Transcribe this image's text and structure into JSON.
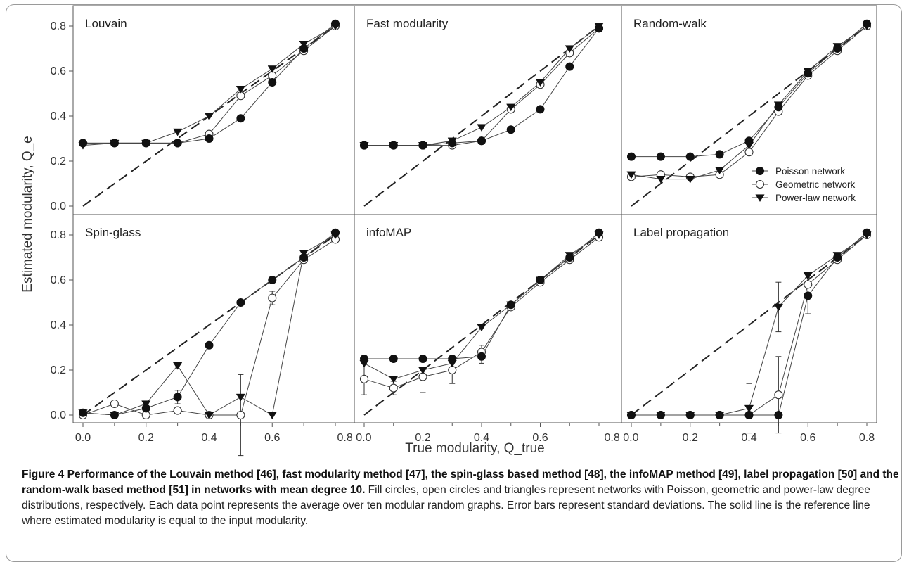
{
  "figure": {
    "xlabel": "True modularity, Q_true",
    "ylabel": "Estimated modularity, Q_e",
    "caption_bold": "Figure 4 Performance of the Louvain method [46], fast modularity method [47], the spin-glass based method [48], the infoMAP method [49], label propagation [50] and the random-walk based method [51] in networks with mean degree 10.",
    "caption_rest": " Fill circles, open circles and triangles represent networks with Poisson, geometric and power-law degree distributions, respectively. Each data point represents the average over ten modular random graphs. Error bars represent standard deviations. The solid line is the reference line where estimated modularity is equal to the input modularity.",
    "legend": [
      "Poisson network",
      "Geometric network",
      "Power-law network"
    ]
  },
  "chart_data": [
    {
      "type": "line",
      "title": "Louvain",
      "xlim": [
        0,
        0.8
      ],
      "ylim": [
        0,
        0.8
      ],
      "x": [
        0.0,
        0.1,
        0.2,
        0.3,
        0.4,
        0.5,
        0.6,
        0.7,
        0.8
      ],
      "reference_line": [
        [
          0,
          0
        ],
        [
          0.8,
          0.8
        ]
      ],
      "series": [
        {
          "name": "Poisson network",
          "values": [
            0.28,
            0.28,
            0.28,
            0.28,
            0.3,
            0.39,
            0.55,
            0.7,
            0.81
          ]
        },
        {
          "name": "Geometric network",
          "values": [
            0.28,
            0.28,
            0.28,
            0.28,
            0.32,
            0.49,
            0.58,
            0.69,
            0.8
          ]
        },
        {
          "name": "Power-law network",
          "values": [
            0.27,
            0.28,
            0.28,
            0.33,
            0.4,
            0.52,
            0.61,
            0.72,
            0.8
          ]
        }
      ]
    },
    {
      "type": "line",
      "title": "Fast modularity",
      "xlim": [
        0,
        0.8
      ],
      "ylim": [
        0,
        0.8
      ],
      "x": [
        0.0,
        0.1,
        0.2,
        0.3,
        0.4,
        0.5,
        0.6,
        0.7,
        0.8
      ],
      "reference_line": [
        [
          0,
          0
        ],
        [
          0.8,
          0.8
        ]
      ],
      "series": [
        {
          "name": "Poisson network",
          "values": [
            0.27,
            0.27,
            0.27,
            0.28,
            0.29,
            0.34,
            0.43,
            0.62,
            0.79
          ]
        },
        {
          "name": "Geometric network",
          "values": [
            0.27,
            0.27,
            0.27,
            0.27,
            0.29,
            0.43,
            0.54,
            0.68,
            0.79
          ]
        },
        {
          "name": "Power-law network",
          "values": [
            0.27,
            0.27,
            0.27,
            0.29,
            0.35,
            0.44,
            0.55,
            0.7,
            0.8
          ]
        }
      ]
    },
    {
      "type": "line",
      "title": "Random-walk",
      "xlim": [
        0,
        0.8
      ],
      "ylim": [
        0,
        0.8
      ],
      "x": [
        0.0,
        0.1,
        0.2,
        0.3,
        0.4,
        0.5,
        0.6,
        0.7,
        0.8
      ],
      "reference_line": [
        [
          0,
          0
        ],
        [
          0.8,
          0.8
        ]
      ],
      "legend_position": "center-right",
      "series": [
        {
          "name": "Poisson network",
          "values": [
            0.22,
            0.22,
            0.22,
            0.23,
            0.29,
            0.44,
            0.59,
            0.7,
            0.81
          ]
        },
        {
          "name": "Geometric network",
          "values": [
            0.13,
            0.14,
            0.13,
            0.14,
            0.24,
            0.42,
            0.58,
            0.69,
            0.8
          ]
        },
        {
          "name": "Power-law network",
          "values": [
            0.14,
            0.12,
            0.12,
            0.16,
            0.27,
            0.45,
            0.6,
            0.71,
            0.8
          ]
        }
      ]
    },
    {
      "type": "line",
      "title": "Spin-glass",
      "xlim": [
        0,
        0.8
      ],
      "ylim": [
        0,
        0.8
      ],
      "x": [
        0.0,
        0.1,
        0.2,
        0.3,
        0.4,
        0.5,
        0.6,
        0.7,
        0.8
      ],
      "reference_line": [
        [
          0,
          0
        ],
        [
          0.8,
          0.8
        ]
      ],
      "series": [
        {
          "name": "Poisson network",
          "values": [
            0.01,
            0.0,
            0.03,
            0.08,
            0.31,
            0.5,
            0.6,
            0.7,
            0.81
          ],
          "errors": [
            0,
            0,
            0,
            0.03,
            0,
            0,
            0,
            0,
            0
          ]
        },
        {
          "name": "Geometric network",
          "values": [
            0.0,
            0.05,
            0.0,
            0.02,
            0.0,
            0.0,
            0.52,
            0.69,
            0.78
          ],
          "errors": [
            0,
            0,
            0,
            0,
            0,
            0.18,
            0.03,
            0,
            0
          ]
        },
        {
          "name": "Power-law network",
          "values": [
            0.01,
            0.0,
            0.05,
            0.22,
            0.0,
            0.08,
            0.0,
            0.72,
            0.8
          ]
        }
      ]
    },
    {
      "type": "line",
      "title": "infoMAP",
      "xlim": [
        0,
        0.8
      ],
      "ylim": [
        0,
        0.8
      ],
      "x": [
        0.0,
        0.1,
        0.2,
        0.3,
        0.4,
        0.5,
        0.6,
        0.7,
        0.8
      ],
      "reference_line": [
        [
          0,
          0
        ],
        [
          0.8,
          0.8
        ]
      ],
      "series": [
        {
          "name": "Poisson network",
          "values": [
            0.25,
            0.25,
            0.25,
            0.25,
            0.26,
            0.49,
            0.6,
            0.7,
            0.81
          ],
          "errors": [
            0,
            0,
            0,
            0,
            0.03,
            0,
            0,
            0,
            0
          ]
        },
        {
          "name": "Geometric network",
          "values": [
            0.16,
            0.12,
            0.17,
            0.2,
            0.28,
            0.48,
            0.59,
            0.69,
            0.79
          ],
          "errors": [
            0.07,
            0.03,
            0.07,
            0.06,
            0.03,
            0,
            0,
            0,
            0
          ]
        },
        {
          "name": "Power-law network",
          "values": [
            0.23,
            0.16,
            0.2,
            0.23,
            0.39,
            0.49,
            0.6,
            0.71,
            0.8
          ]
        }
      ]
    },
    {
      "type": "line",
      "title": "Label propagation",
      "xlim": [
        0,
        0.8
      ],
      "ylim": [
        0,
        0.8
      ],
      "x": [
        0.0,
        0.1,
        0.2,
        0.3,
        0.4,
        0.5,
        0.6,
        0.7,
        0.8
      ],
      "reference_line": [
        [
          0,
          0
        ],
        [
          0.8,
          0.8
        ]
      ],
      "series": [
        {
          "name": "Poisson network",
          "values": [
            0.0,
            0.0,
            0.0,
            0.0,
            0.0,
            0.0,
            0.53,
            0.7,
            0.81
          ],
          "errors": [
            0,
            0,
            0,
            0,
            0,
            0,
            0.08,
            0,
            0
          ]
        },
        {
          "name": "Geometric network",
          "values": [
            0.0,
            0.0,
            0.0,
            0.0,
            0.0,
            0.09,
            0.58,
            0.69,
            0.8
          ],
          "errors": [
            0,
            0,
            0,
            0,
            0,
            0.17,
            0,
            0,
            0
          ]
        },
        {
          "name": "Power-law network",
          "values": [
            0.0,
            0.0,
            0.0,
            0.0,
            0.03,
            0.48,
            0.62,
            0.71,
            0.8
          ],
          "errors": [
            0,
            0,
            0,
            0,
            0.11,
            0.11,
            0,
            0,
            0
          ]
        }
      ]
    }
  ],
  "ticks": {
    "x": [
      "0.0",
      "0.2",
      "0.4",
      "0.6",
      "0.8"
    ],
    "x_joined": [
      "0.8 0.0",
      "0.8 0.0"
    ],
    "y": [
      "0.0",
      "0.2",
      "0.4",
      "0.6",
      "0.8"
    ]
  }
}
